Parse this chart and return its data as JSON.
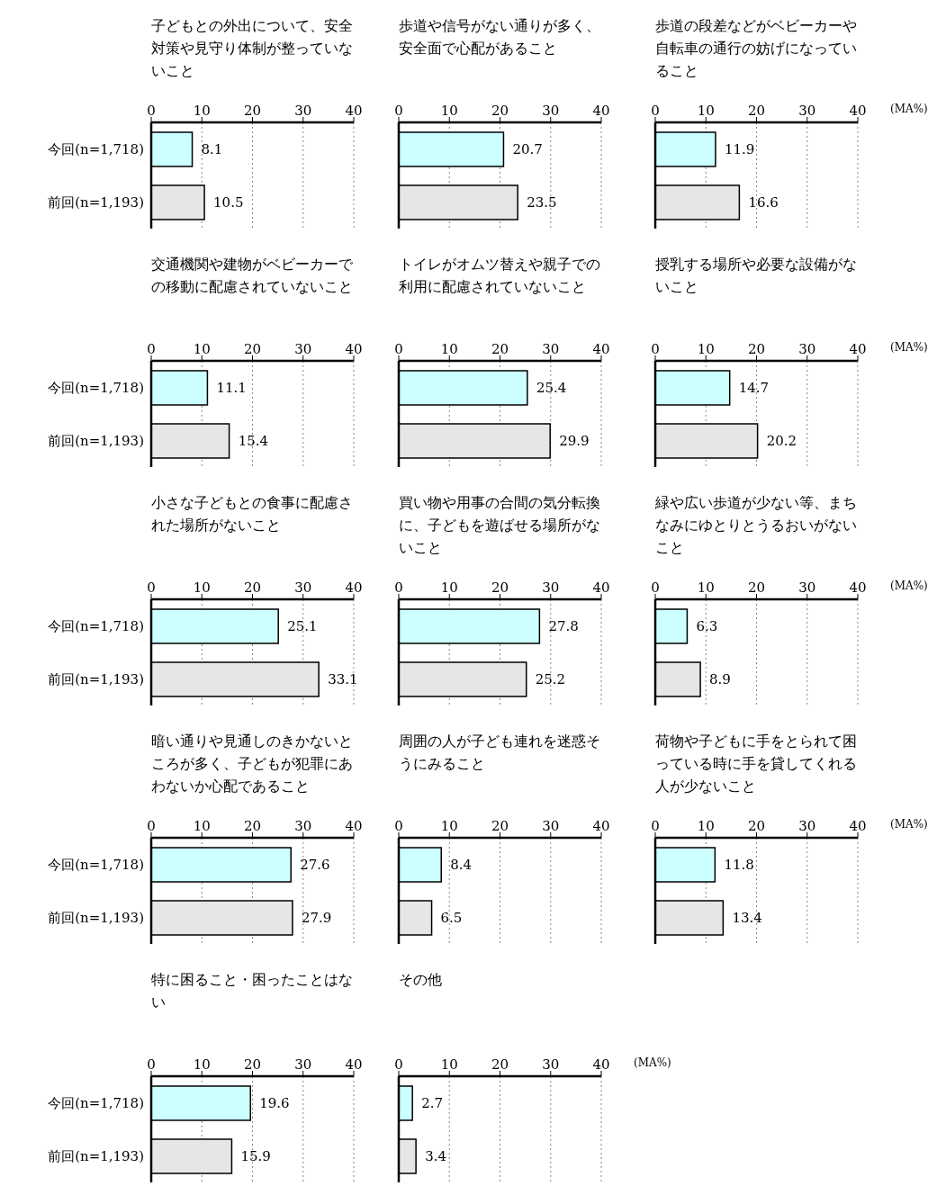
{
  "chart_data": [
    {
      "type": "bar",
      "orientation": "horizontal",
      "title": "子どもとの外出について、安全対策や見守り体制が整っていないこと",
      "categories": [
        "今回(n=1,718)",
        "前回(n=1,193)"
      ],
      "values": [
        8.1,
        10.5
      ],
      "colors": [
        "#ccffff",
        "#e6e6e6"
      ],
      "xlim": [
        0,
        40
      ],
      "xticks": [
        0,
        10,
        20,
        30,
        40
      ],
      "grid": "x",
      "data_labels": true
    },
    {
      "type": "bar",
      "orientation": "horizontal",
      "title": "歩道や信号がない通りが多く、安全面で心配があること",
      "categories": [
        null,
        null
      ],
      "values": [
        20.7,
        23.5
      ],
      "colors": [
        "#ccffff",
        "#e6e6e6"
      ],
      "xlim": [
        0,
        40
      ],
      "xticks": [
        0,
        10,
        20,
        30,
        40
      ],
      "grid": "x",
      "data_labels": true
    },
    {
      "type": "bar",
      "orientation": "horizontal",
      "title": "歩道の段差などがベビーカーや自転車の通行の妨げになっていること",
      "xlabel": "(MA%)",
      "categories": [
        null,
        null
      ],
      "values": [
        11.9,
        16.6
      ],
      "colors": [
        "#ccffff",
        "#e6e6e6"
      ],
      "xlim": [
        0,
        40
      ],
      "xticks": [
        0,
        10,
        20,
        30,
        40
      ],
      "grid": "x",
      "data_labels": true
    },
    {
      "type": "bar",
      "orientation": "horizontal",
      "title": "交通機関や建物がベビーカーでの移動に配慮されていないこと",
      "categories": [
        "今回(n=1,718)",
        "前回(n=1,193)"
      ],
      "values": [
        11.1,
        15.4
      ],
      "colors": [
        "#ccffff",
        "#e6e6e6"
      ],
      "xlim": [
        0,
        40
      ],
      "xticks": [
        0,
        10,
        20,
        30,
        40
      ],
      "grid": "x",
      "data_labels": true
    },
    {
      "type": "bar",
      "orientation": "horizontal",
      "title": "トイレがオムツ替えや親子での利用に配慮されていないこと",
      "categories": [
        null,
        null
      ],
      "values": [
        25.4,
        29.9
      ],
      "colors": [
        "#ccffff",
        "#e6e6e6"
      ],
      "xlim": [
        0,
        40
      ],
      "xticks": [
        0,
        10,
        20,
        30,
        40
      ],
      "grid": "x",
      "data_labels": true
    },
    {
      "type": "bar",
      "orientation": "horizontal",
      "title": "授乳する場所や必要な設備がないこと",
      "xlabel": "(MA%)",
      "categories": [
        null,
        null
      ],
      "values": [
        14.7,
        20.2
      ],
      "colors": [
        "#ccffff",
        "#e6e6e6"
      ],
      "xlim": [
        0,
        40
      ],
      "xticks": [
        0,
        10,
        20,
        30,
        40
      ],
      "grid": "x",
      "data_labels": true
    },
    {
      "type": "bar",
      "orientation": "horizontal",
      "title": "小さな子どもとの食事に配慮された場所がないこと",
      "categories": [
        "今回(n=1,718)",
        "前回(n=1,193)"
      ],
      "values": [
        25.1,
        33.1
      ],
      "colors": [
        "#ccffff",
        "#e6e6e6"
      ],
      "xlim": [
        0,
        40
      ],
      "xticks": [
        0,
        10,
        20,
        30,
        40
      ],
      "grid": "x",
      "data_labels": true
    },
    {
      "type": "bar",
      "orientation": "horizontal",
      "title": "買い物や用事の合間の気分転換に、子どもを遊ばせる場所がないこと",
      "categories": [
        null,
        null
      ],
      "values": [
        27.8,
        25.2
      ],
      "colors": [
        "#ccffff",
        "#e6e6e6"
      ],
      "xlim": [
        0,
        40
      ],
      "xticks": [
        0,
        10,
        20,
        30,
        40
      ],
      "grid": "x",
      "data_labels": true
    },
    {
      "type": "bar",
      "orientation": "horizontal",
      "title": "緑や広い歩道が少ない等、まちなみにゆとりとうるおいがないこと",
      "xlabel": "(MA%)",
      "categories": [
        null,
        null
      ],
      "values": [
        6.3,
        8.9
      ],
      "colors": [
        "#ccffff",
        "#e6e6e6"
      ],
      "xlim": [
        0,
        40
      ],
      "xticks": [
        0,
        10,
        20,
        30,
        40
      ],
      "grid": "x",
      "data_labels": true
    },
    {
      "type": "bar",
      "orientation": "horizontal",
      "title": "暗い通りや見通しのきかないところが多く、子どもが犯罪にあわないか心配であること",
      "categories": [
        "今回(n=1,718)",
        "前回(n=1,193)"
      ],
      "values": [
        27.6,
        27.9
      ],
      "colors": [
        "#ccffff",
        "#e6e6e6"
      ],
      "xlim": [
        0,
        40
      ],
      "xticks": [
        0,
        10,
        20,
        30,
        40
      ],
      "grid": "x",
      "data_labels": true
    },
    {
      "type": "bar",
      "orientation": "horizontal",
      "title": "周囲の人が子ども連れを迷惑そうにみること",
      "categories": [
        null,
        null
      ],
      "values": [
        8.4,
        6.5
      ],
      "colors": [
        "#ccffff",
        "#e6e6e6"
      ],
      "xlim": [
        0,
        40
      ],
      "xticks": [
        0,
        10,
        20,
        30,
        40
      ],
      "grid": "x",
      "data_labels": true
    },
    {
      "type": "bar",
      "orientation": "horizontal",
      "title": "荷物や子どもに手をとられて困っている時に手を貸してくれる人が少ないこと",
      "xlabel": "(MA%)",
      "categories": [
        null,
        null
      ],
      "values": [
        11.8,
        13.4
      ],
      "colors": [
        "#ccffff",
        "#e6e6e6"
      ],
      "xlim": [
        0,
        40
      ],
      "xticks": [
        0,
        10,
        20,
        30,
        40
      ],
      "grid": "x",
      "data_labels": true
    },
    {
      "type": "bar",
      "orientation": "horizontal",
      "title": "特に困ること・困ったことはない",
      "categories": [
        "今回(n=1,718)",
        "前回(n=1,193)"
      ],
      "values": [
        19.6,
        15.9
      ],
      "colors": [
        "#ccffff",
        "#e6e6e6"
      ],
      "xlim": [
        0,
        40
      ],
      "xticks": [
        0,
        10,
        20,
        30,
        40
      ],
      "grid": "x",
      "data_labels": true
    },
    {
      "type": "bar",
      "orientation": "horizontal",
      "title": "その他",
      "xlabel": "(MA%)",
      "categories": [
        null,
        null
      ],
      "values": [
        2.7,
        3.4
      ],
      "colors": [
        "#ccffff",
        "#e6e6e6"
      ],
      "xlim": [
        0,
        40
      ],
      "xticks": [
        0,
        10,
        20,
        30,
        40
      ],
      "grid": "x",
      "data_labels": true
    }
  ]
}
